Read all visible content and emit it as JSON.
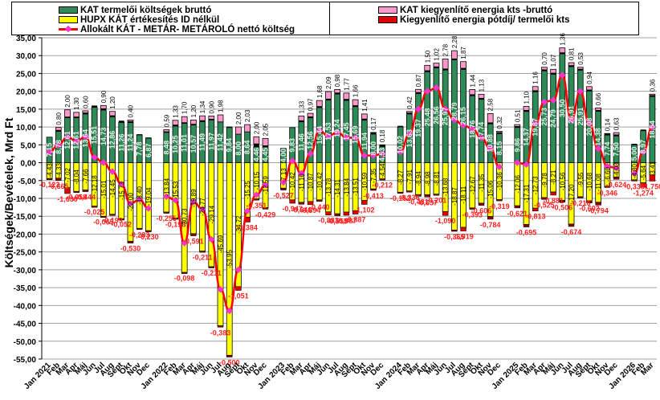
{
  "chart_data": {
    "type": "bar",
    "subtype": "stacked-bar-with-line",
    "title": "",
    "xlabel": "",
    "ylabel": "Költségek/Bevételek, Mrd Ft",
    "ylim": [
      -55,
      35
    ],
    "ytick_step": 5,
    "ytick_labels": [
      "35,00",
      "30,00",
      "25,00",
      "20,00",
      "15,00",
      "10,00",
      "5,00",
      "0,00",
      "-5,00",
      "-10,00",
      "-15,00",
      "-20,00",
      "-25,00",
      "-30,00",
      "-35,00",
      "-40,00",
      "-45,00",
      "-50,00",
      "-55,00"
    ],
    "grid": true,
    "legend_position": "top",
    "legend": [
      {
        "key": "kat_gross",
        "label": "KAT termelői költségek bruttó",
        "color": "#2e8b57"
      },
      {
        "key": "hupx",
        "label": "HUPX KÁT értékesítés ID nélkül",
        "color": "#ffff00"
      },
      {
        "key": "net_line",
        "label": "Allokált KÁT - METÁR- METÁROLÓ nettó költség",
        "color": "#ff0000",
        "marker_color": "#ff33cc"
      },
      {
        "key": "balancing_gross",
        "label": "KAT kiegyenlítő energia kts -bruttó",
        "color": "#ff99cc"
      },
      {
        "key": "balancing_fee",
        "label": "Kiegyenlítő energia pótdíj/ termelői kts",
        "color": "#e00000"
      }
    ],
    "groups": [
      {
        "year_label": "Jan 2021",
        "months": [
          "Jan 2021",
          "Feb",
          "Mar",
          "Apr",
          "Máj",
          "Jun",
          "Jul",
          "Aug",
          "Sept",
          "Okt",
          "Nov",
          "Dec"
        ],
        "kat_gross": [
          7.15,
          8.78,
          12.61,
          12.61,
          13.64,
          15.51,
          14.73,
          12.86,
          11.26,
          11.24,
          7.78,
          6.87
        ],
        "balancing_gross": [
          0.0,
          0.8,
          2.0,
          1.3,
          0.6,
          0.0,
          0.9,
          1.2,
          0.0,
          0.4,
          0.0,
          0.0
        ],
        "balancing_top": [
          0.0,
          0.3,
          0.2,
          0.2,
          0.3,
          0.5,
          0.4,
          0.3,
          0.5,
          0.3,
          0.2,
          0.2
        ],
        "hupx": [
          -4.43,
          -4.33,
          -7.02,
          -8.04,
          -7.66,
          -12.18,
          -15.01,
          -14.45,
          -15.73,
          -22.0,
          -18.4,
          -19.04
        ],
        "balancing_fee": [
          -0.123,
          -0.665,
          -1.63,
          -0.058,
          -0.444,
          -0.025,
          -0.065,
          -0.199,
          -0.052,
          -0.53,
          -0.283,
          -0.23
        ],
        "net": [
          3.0,
          5.0,
          7.2,
          6.0,
          7.3,
          1.5,
          0.0,
          -2.5,
          -6.0,
          -11.5,
          -10.3,
          -12.8
        ]
      },
      {
        "year_label": "Jan 2022",
        "months": [
          "Jan 2022",
          "Feb",
          "Mar",
          "Apr",
          "Máj",
          "Jun",
          "Jul",
          "Aug",
          "Sept",
          "Okt",
          "Nov",
          "Dec"
        ],
        "kat_gross": [
          8.48,
          10.25,
          11.01,
          10.57,
          11.49,
          11.97,
          11.42,
          9.84,
          8.0,
          8.64,
          4.46,
          4.45
        ],
        "balancing_gross": [
          0.59,
          1.33,
          1.7,
          1.2,
          1.34,
          0.9,
          1.98,
          0.0,
          2.0,
          2.03,
          2.0,
          2.05
        ],
        "balancing_top": [
          0.2,
          0.3,
          0.2,
          0.2,
          0.3,
          0.2,
          0.0,
          0.27,
          0.0,
          0.0,
          0.81,
          0.3
        ],
        "hupx": [
          -13.84,
          -15.53,
          -30.73,
          -19.89,
          -24.77,
          -29.14,
          -45.69,
          -53.95,
          -34.72,
          -15.25,
          -10.15,
          -12.59
        ],
        "balancing_fee": [
          -0.255,
          -0.198,
          -0.098,
          -0.591,
          -0.211,
          -0.211,
          -0.383,
          -0.5,
          -1.051,
          -1.384,
          -0.351,
          -0.429
        ],
        "net": [
          -9.5,
          -10.5,
          -22.5,
          -11.0,
          -13.0,
          -21.5,
          -35.5,
          -41.5,
          -30.0,
          -13.5,
          -9.0,
          -6.3
        ]
      },
      {
        "year_label": "Jan 2023",
        "months": [
          "Jan 2023",
          "Feb",
          "Mar",
          "Apr",
          "Máj",
          "Jun",
          "Jul",
          "Aug",
          "Sept",
          "Okt",
          "Nov",
          "Dec"
        ],
        "kat_gross": [
          4.0,
          9.83,
          11.46,
          12.56,
          15.44,
          17.53,
          19.24,
          17.45,
          15.69,
          11.94,
          8.0,
          4.53
        ],
        "balancing_gross": [
          0.0,
          0.0,
          1.33,
          0.97,
          1.68,
          2.09,
          0.98,
          1.77,
          1.66,
          1.41,
          0.17,
          0.18
        ],
        "balancing_top": [
          0.0,
          0.0,
          0.3,
          0.3,
          0.3,
          0.3,
          0.3,
          0.3,
          0.3,
          0.3,
          0.3,
          0.3
        ],
        "hupx": [
          -7.13,
          -10.42,
          -11.1,
          -10.87,
          -10.42,
          -13.78,
          -14.31,
          -13.84,
          -13.51,
          -10.59,
          -7.35,
          -4.54
        ],
        "balancing_fee": [
          -0.527,
          -0.947,
          -0.546,
          -0.894,
          -0.44,
          -0.883,
          -0.555,
          -0.887,
          -0.887,
          -1.102,
          -0.413,
          -0.212
        ],
        "net": [
          -5.5,
          0.5,
          -3.0,
          2.5,
          9.0,
          7.5,
          8.5,
          7.0,
          7.0,
          2.0,
          2.0,
          2.5
        ]
      },
      {
        "year_label": "Jan 2024",
        "months": [
          "Jan 2024",
          "Feb",
          "Mar",
          "Apr",
          "Máj",
          "Jun",
          "Jul",
          "Aug",
          "Sept",
          "Okt",
          "Nov",
          "Dec"
        ],
        "kat_gross": [
          10.02,
          13.63,
          19.37,
          25.48,
          26.56,
          25.97,
          28.79,
          26.15,
          18.76,
          17.74,
          10.88,
          8.15
        ],
        "balancing_gross": [
          0.0,
          0.42,
          0.87,
          1.5,
          1.02,
          2.78,
          2.28,
          1.87,
          1.44,
          1.13,
          2.58,
          0.32
        ],
        "balancing_top": [
          0.3,
          0.3,
          0.3,
          0.3,
          0.3,
          0.3,
          0.3,
          0.3,
          0.3,
          0.3,
          0.3,
          0.3
        ],
        "hupx": [
          -8.27,
          -7.91,
          -8.94,
          -8.98,
          -8.81,
          -13.68,
          -18.87,
          -18.11,
          -12.67,
          -11.35,
          -15.06,
          -10.36
        ],
        "balancing_fee": [
          -0.152,
          -0.336,
          -0.481,
          -0.637,
          -0.201,
          -1.09,
          -0.365,
          -1.019,
          -0.393,
          -0.606,
          -0.784,
          -0.319
        ],
        "net": [
          3.0,
          8.0,
          15.0,
          20.0,
          21.0,
          15.0,
          12.0,
          10.5,
          9.5,
          7.0,
          4.0,
          -1.2
        ]
      },
      {
        "year_label": "Jan 2025",
        "months": [
          "Jan 2025",
          "Feb",
          "Mar",
          "Apr",
          "Máj",
          "Jun",
          "Jul",
          "Aug",
          "Sept",
          "Okt",
          "Nov",
          "Dec"
        ],
        "kat_gross": [
          9.86,
          14.37,
          19.87,
          25.73,
          24.79,
          30.5,
          26.91,
          25.91,
          20.08,
          14.38,
          7.74,
          7.5
        ],
        "balancing_gross": [
          0.51,
          1.1,
          1.16,
          0.7,
          1.07,
          1.36,
          0.81,
          0.53,
          0.94,
          0.66,
          0.14,
          0.63
        ],
        "balancing_top": [
          0.3,
          0.3,
          0.3,
          0.3,
          0.3,
          0.3,
          0.3,
          0.3,
          0.3,
          0.3,
          0.3,
          0.3
        ],
        "hupx": [
          -12.06,
          -17.31,
          -12.73,
          -9.78,
          -8.21,
          -10.56,
          -17.2,
          -9.55,
          -10.68,
          -11.08,
          -6.6,
          -4.03
        ],
        "balancing_fee": [
          -0.621,
          -0.695,
          -0.813,
          -0.525,
          -0.881,
          -0.506,
          -0.674,
          -0.216,
          -0.602,
          -0.794,
          -0.346,
          -0.624
        ],
        "net": [
          0.0,
          -0.5,
          11.0,
          17.0,
          17.5,
          24.5,
          12.0,
          20.0,
          11.0,
          4.0,
          -1.0,
          -1.5
        ]
      },
      {
        "year_label": "Jan 2026",
        "months": [
          "Jan 2026",
          "Feb",
          "Mar"
        ],
        "kat_gross": [
          5.0,
          8.97,
          18.54
        ],
        "balancing_gross": [
          0.0,
          0.0,
          0.36
        ],
        "balancing_top": [
          0.3,
          0.3,
          0.3
        ],
        "hupx": [
          -4.8,
          -5.64,
          -3.41
        ],
        "balancing_fee": [
          -0.336,
          -1.274,
          -1.75
        ],
        "net": [
          -3.0,
          3.0,
          10.0
        ]
      }
    ],
    "fee_labels_shown": true
  }
}
